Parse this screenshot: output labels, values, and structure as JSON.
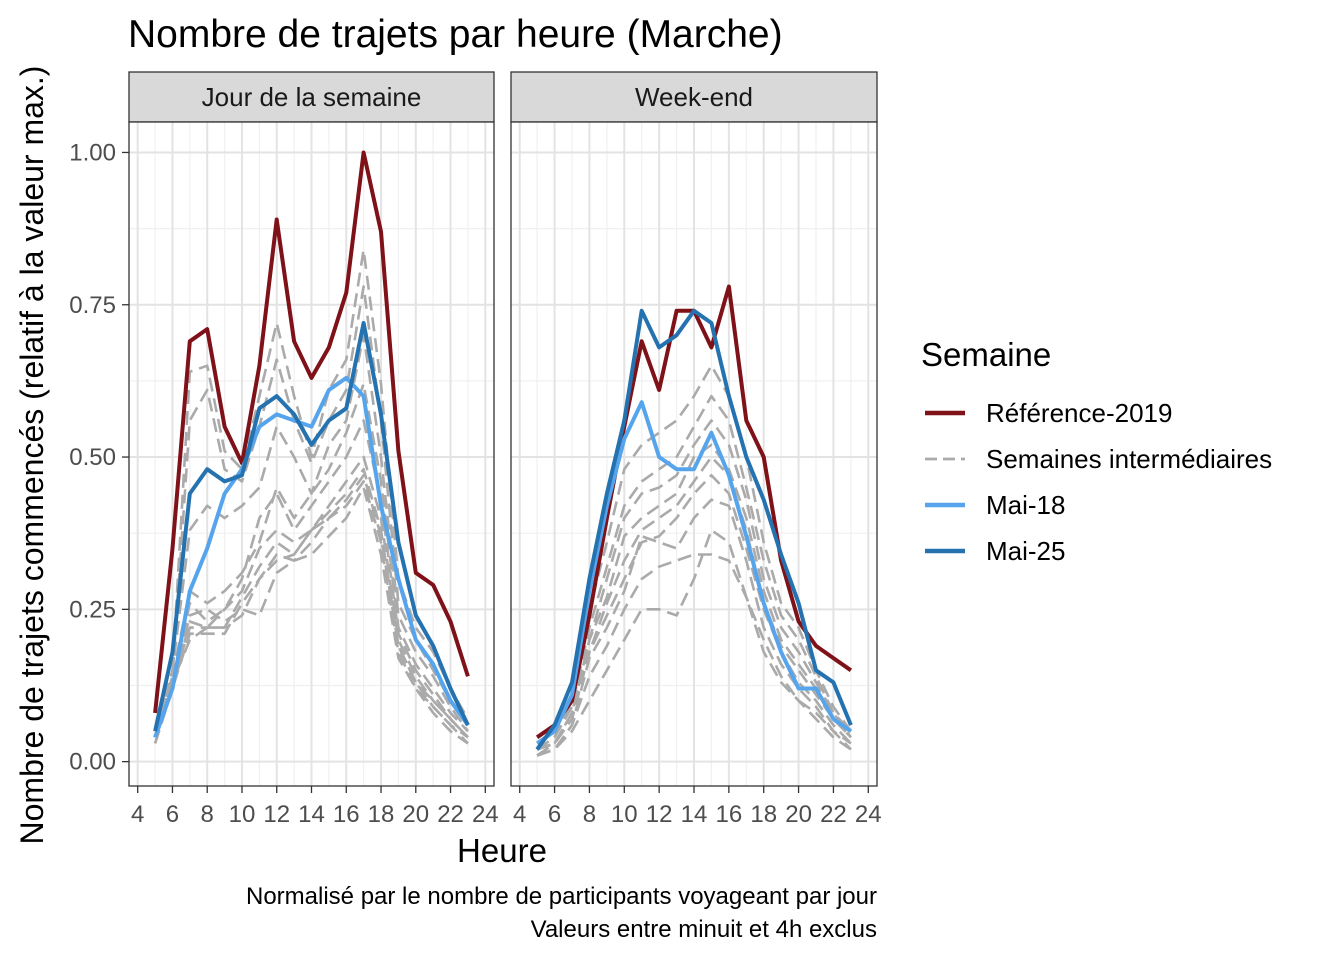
{
  "chart_data": {
    "type": "line",
    "title": "Nombre de trajets par heure (Marche)",
    "xlabel": "Heure",
    "ylabel": "Nombre de trajets commencés (relatif à la valeur max.)",
    "caption": [
      "Normalisé par le nombre de participants voyageant par jour",
      "Valeurs entre minuit et 4h exclus"
    ],
    "x_ticks": [
      4,
      6,
      8,
      10,
      12,
      14,
      16,
      18,
      20,
      22,
      24
    ],
    "y_ticks": [
      "0.00",
      "0.25",
      "0.50",
      "0.75",
      "1.00"
    ],
    "y_tick_values": [
      0,
      0.25,
      0.5,
      0.75,
      1.0
    ],
    "xlim": [
      3.5,
      24.5
    ],
    "ylim": [
      -0.04,
      1.05
    ],
    "grid": true,
    "legend": {
      "title": "Semaine",
      "position": "right",
      "entries": [
        {
          "label": "Référence-2019",
          "color": "#7f1118",
          "dash": "solid"
        },
        {
          "label": "Semaines intermédiaires",
          "color": "#aaaaaa",
          "dash": "dashed"
        },
        {
          "label": "Mai-18",
          "color": "#56a5ec",
          "dash": "solid"
        },
        {
          "label": "Mai-25",
          "color": "#2472b0",
          "dash": "solid"
        }
      ]
    },
    "x": [
      5,
      6,
      7,
      8,
      9,
      10,
      11,
      12,
      13,
      14,
      15,
      16,
      17,
      18,
      19,
      20,
      21,
      22,
      23
    ],
    "panels": [
      {
        "label": "Jour de la semaine",
        "series": [
          {
            "name": "Semaines intermédiaires",
            "values": [
              0.04,
              0.15,
              0.64,
              0.65,
              0.51,
              0.48,
              0.6,
              0.72,
              0.6,
              0.5,
              0.61,
              0.66,
              0.84,
              0.62,
              0.3,
              0.22,
              0.18,
              0.12,
              0.07
            ]
          },
          {
            "name": "Semaines intermédiaires",
            "values": [
              0.05,
              0.14,
              0.56,
              0.61,
              0.48,
              0.46,
              0.55,
              0.66,
              0.56,
              0.49,
              0.56,
              0.61,
              0.78,
              0.56,
              0.26,
              0.2,
              0.15,
              0.1,
              0.06
            ]
          },
          {
            "name": "Semaines intermédiaires",
            "values": [
              0.04,
              0.15,
              0.38,
              0.42,
              0.4,
              0.42,
              0.45,
              0.55,
              0.5,
              0.44,
              0.52,
              0.56,
              0.7,
              0.5,
              0.24,
              0.18,
              0.14,
              0.09,
              0.05
            ]
          },
          {
            "name": "Semaines intermédiaires",
            "values": [
              0.04,
              0.14,
              0.28,
              0.26,
              0.28,
              0.31,
              0.36,
              0.45,
              0.4,
              0.44,
              0.48,
              0.54,
              0.62,
              0.46,
              0.22,
              0.16,
              0.12,
              0.08,
              0.05
            ]
          },
          {
            "name": "Semaines intermédiaires",
            "values": [
              0.04,
              0.13,
              0.26,
              0.23,
              0.25,
              0.3,
              0.4,
              0.44,
              0.38,
              0.42,
              0.46,
              0.5,
              0.56,
              0.43,
              0.21,
              0.15,
              0.11,
              0.07,
              0.04
            ]
          },
          {
            "name": "Semaines intermédiaires",
            "values": [
              0.03,
              0.12,
              0.23,
              0.22,
              0.25,
              0.28,
              0.35,
              0.38,
              0.36,
              0.38,
              0.42,
              0.46,
              0.5,
              0.4,
              0.2,
              0.14,
              0.1,
              0.07,
              0.04
            ]
          },
          {
            "name": "Semaines intermédiaires",
            "values": [
              0.04,
              0.13,
              0.22,
              0.22,
              0.22,
              0.27,
              0.32,
              0.36,
              0.34,
              0.38,
              0.41,
              0.44,
              0.48,
              0.38,
              0.19,
              0.13,
              0.1,
              0.07,
              0.04
            ]
          },
          {
            "name": "Semaines intermédiaires",
            "values": [
              0.03,
              0.12,
              0.21,
              0.21,
              0.21,
              0.26,
              0.3,
              0.34,
              0.33,
              0.36,
              0.4,
              0.42,
              0.46,
              0.36,
              0.18,
              0.12,
              0.09,
              0.06,
              0.03
            ]
          },
          {
            "name": "Semaines intermédiaires",
            "values": [
              0.04,
              0.12,
              0.24,
              0.25,
              0.23,
              0.25,
              0.24,
              0.31,
              0.33,
              0.34,
              0.37,
              0.4,
              0.45,
              0.34,
              0.17,
              0.12,
              0.08,
              0.05,
              0.03
            ]
          },
          {
            "name": "Semaines intermédiaires",
            "values": [
              0.05,
              0.13,
              0.2,
              0.22,
              0.22,
              0.24,
              0.3,
              0.33,
              0.34,
              0.38,
              0.4,
              0.43,
              0.47,
              0.37,
              0.19,
              0.13,
              0.09,
              0.06,
              0.04
            ]
          },
          {
            "name": "Référence-2019",
            "values": [
              0.08,
              0.35,
              0.69,
              0.71,
              0.55,
              0.49,
              0.65,
              0.89,
              0.69,
              0.63,
              0.68,
              0.77,
              1.0,
              0.87,
              0.51,
              0.31,
              0.29,
              0.23,
              0.14
            ]
          },
          {
            "name": "Mai-18",
            "values": [
              0.04,
              0.12,
              0.28,
              0.35,
              0.44,
              0.48,
              0.55,
              0.57,
              0.56,
              0.55,
              0.61,
              0.63,
              0.6,
              0.42,
              0.3,
              0.2,
              0.16,
              0.1,
              0.06
            ]
          },
          {
            "name": "Mai-25",
            "values": [
              0.05,
              0.18,
              0.44,
              0.48,
              0.46,
              0.47,
              0.58,
              0.6,
              0.57,
              0.52,
              0.56,
              0.58,
              0.72,
              0.57,
              0.36,
              0.24,
              0.19,
              0.12,
              0.06
            ]
          }
        ]
      },
      {
        "label": "Week-end",
        "series": [
          {
            "name": "Semaines intermédiaires",
            "values": [
              0.02,
              0.04,
              0.1,
              0.25,
              0.36,
              0.48,
              0.52,
              0.54,
              0.56,
              0.6,
              0.65,
              0.6,
              0.5,
              0.36,
              0.26,
              0.22,
              0.15,
              0.09,
              0.05
            ]
          },
          {
            "name": "Semaines intermédiaires",
            "values": [
              0.02,
              0.04,
              0.09,
              0.22,
              0.32,
              0.42,
              0.46,
              0.48,
              0.5,
              0.55,
              0.6,
              0.56,
              0.45,
              0.33,
              0.24,
              0.2,
              0.14,
              0.08,
              0.05
            ]
          },
          {
            "name": "Semaines intermédiaires",
            "values": [
              0.02,
              0.03,
              0.08,
              0.2,
              0.3,
              0.4,
              0.44,
              0.45,
              0.47,
              0.52,
              0.56,
              0.52,
              0.43,
              0.3,
              0.22,
              0.18,
              0.13,
              0.08,
              0.04
            ]
          },
          {
            "name": "Semaines intermédiaires",
            "values": [
              0.01,
              0.03,
              0.08,
              0.2,
              0.27,
              0.37,
              0.4,
              0.42,
              0.44,
              0.5,
              0.52,
              0.48,
              0.4,
              0.28,
              0.2,
              0.16,
              0.12,
              0.07,
              0.04
            ]
          },
          {
            "name": "Semaines intermédiaires",
            "values": [
              0.02,
              0.03,
              0.07,
              0.18,
              0.26,
              0.33,
              0.38,
              0.4,
              0.42,
              0.46,
              0.5,
              0.47,
              0.38,
              0.26,
              0.19,
              0.15,
              0.11,
              0.07,
              0.04
            ]
          },
          {
            "name": "Semaines intermédiaires",
            "values": [
              0.02,
              0.03,
              0.07,
              0.18,
              0.24,
              0.3,
              0.36,
              0.37,
              0.4,
              0.44,
              0.47,
              0.44,
              0.35,
              0.25,
              0.18,
              0.13,
              0.1,
              0.06,
              0.03
            ]
          },
          {
            "name": "Semaines intermédiaires",
            "values": [
              0.01,
              0.02,
              0.06,
              0.17,
              0.22,
              0.28,
              0.37,
              0.36,
              0.35,
              0.4,
              0.43,
              0.42,
              0.33,
              0.22,
              0.16,
              0.12,
              0.09,
              0.05,
              0.03
            ]
          },
          {
            "name": "Semaines intermédiaires",
            "values": [
              0.01,
              0.02,
              0.06,
              0.14,
              0.19,
              0.25,
              0.3,
              0.32,
              0.33,
              0.34,
              0.34,
              0.33,
              0.27,
              0.2,
              0.14,
              0.1,
              0.08,
              0.05,
              0.02
            ]
          },
          {
            "name": "Semaines intermédiaires",
            "values": [
              0.01,
              0.02,
              0.05,
              0.1,
              0.15,
              0.2,
              0.25,
              0.25,
              0.24,
              0.3,
              0.38,
              0.36,
              0.27,
              0.18,
              0.13,
              0.1,
              0.07,
              0.04,
              0.02
            ]
          },
          {
            "name": "Référence-2019",
            "values": [
              0.04,
              0.06,
              0.1,
              0.24,
              0.4,
              0.55,
              0.69,
              0.61,
              0.74,
              0.74,
              0.68,
              0.78,
              0.56,
              0.5,
              0.33,
              0.23,
              0.19,
              0.17,
              0.15
            ]
          },
          {
            "name": "Mai-18",
            "values": [
              0.03,
              0.05,
              0.11,
              0.28,
              0.42,
              0.53,
              0.59,
              0.5,
              0.48,
              0.48,
              0.54,
              0.47,
              0.37,
              0.26,
              0.18,
              0.12,
              0.12,
              0.07,
              0.05
            ]
          },
          {
            "name": "Mai-25",
            "values": [
              0.02,
              0.06,
              0.13,
              0.3,
              0.44,
              0.56,
              0.74,
              0.68,
              0.7,
              0.74,
              0.72,
              0.6,
              0.5,
              0.43,
              0.34,
              0.26,
              0.15,
              0.13,
              0.06
            ]
          }
        ]
      }
    ]
  }
}
